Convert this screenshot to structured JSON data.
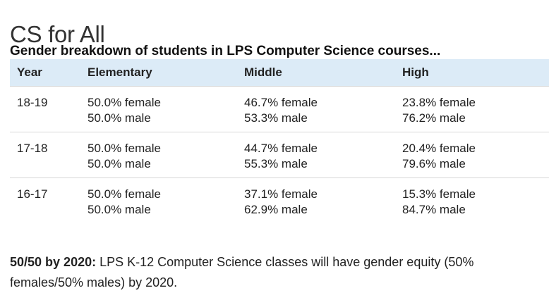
{
  "page": {
    "title": "CS for All",
    "subtitle": "Gender breakdown of students in LPS Computer Science courses..."
  },
  "table": {
    "headers": [
      "Year",
      "Elementary",
      "Middle",
      "High"
    ],
    "rows": [
      {
        "year": "18-19",
        "elementary": {
          "female": "50.0% female",
          "male": "50.0% male"
        },
        "middle": {
          "female": "46.7% female",
          "male": "53.3% male"
        },
        "high": {
          "female": "23.8% female",
          "male": "76.2% male"
        }
      },
      {
        "year": "17-18",
        "elementary": {
          "female": "50.0% female",
          "male": "50.0% male"
        },
        "middle": {
          "female": "44.7% female",
          "male": "55.3% male"
        },
        "high": {
          "female": "20.4% female",
          "male": "79.6% male"
        }
      },
      {
        "year": "16-17",
        "elementary": {
          "female": "50.0% female",
          "male": "50.0% male"
        },
        "middle": {
          "female": "37.1% female",
          "male": "62.9% male"
        },
        "high": {
          "female": "15.3% female",
          "male": "84.7% male"
        }
      }
    ]
  },
  "footer": {
    "bold_label": "50/50 by 2020:",
    "text": " LPS K-12 Computer Science classes will have gender equity (50% females/50% males) by 2020."
  },
  "colors": {
    "header_background": "#dcebf7",
    "row_divider": "#d8d8d8"
  }
}
